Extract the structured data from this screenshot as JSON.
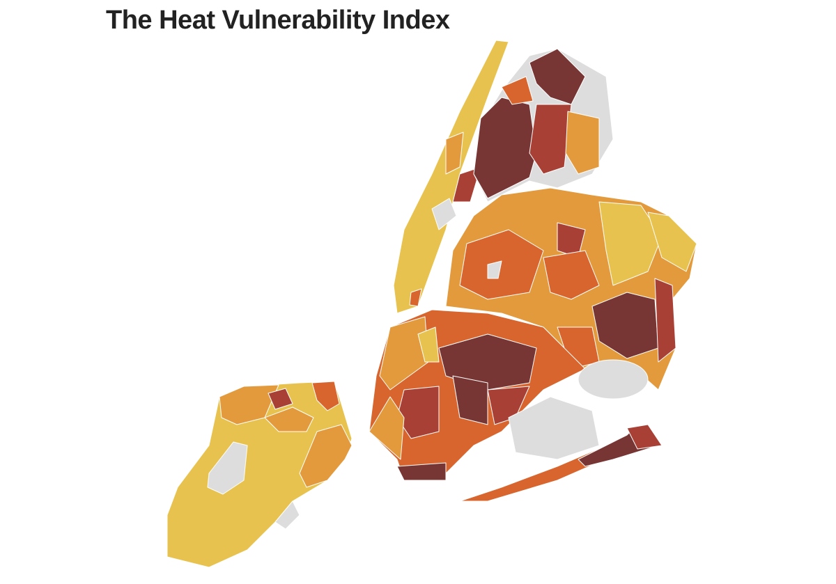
{
  "title": "The Heat Vulnerability Index"
}
